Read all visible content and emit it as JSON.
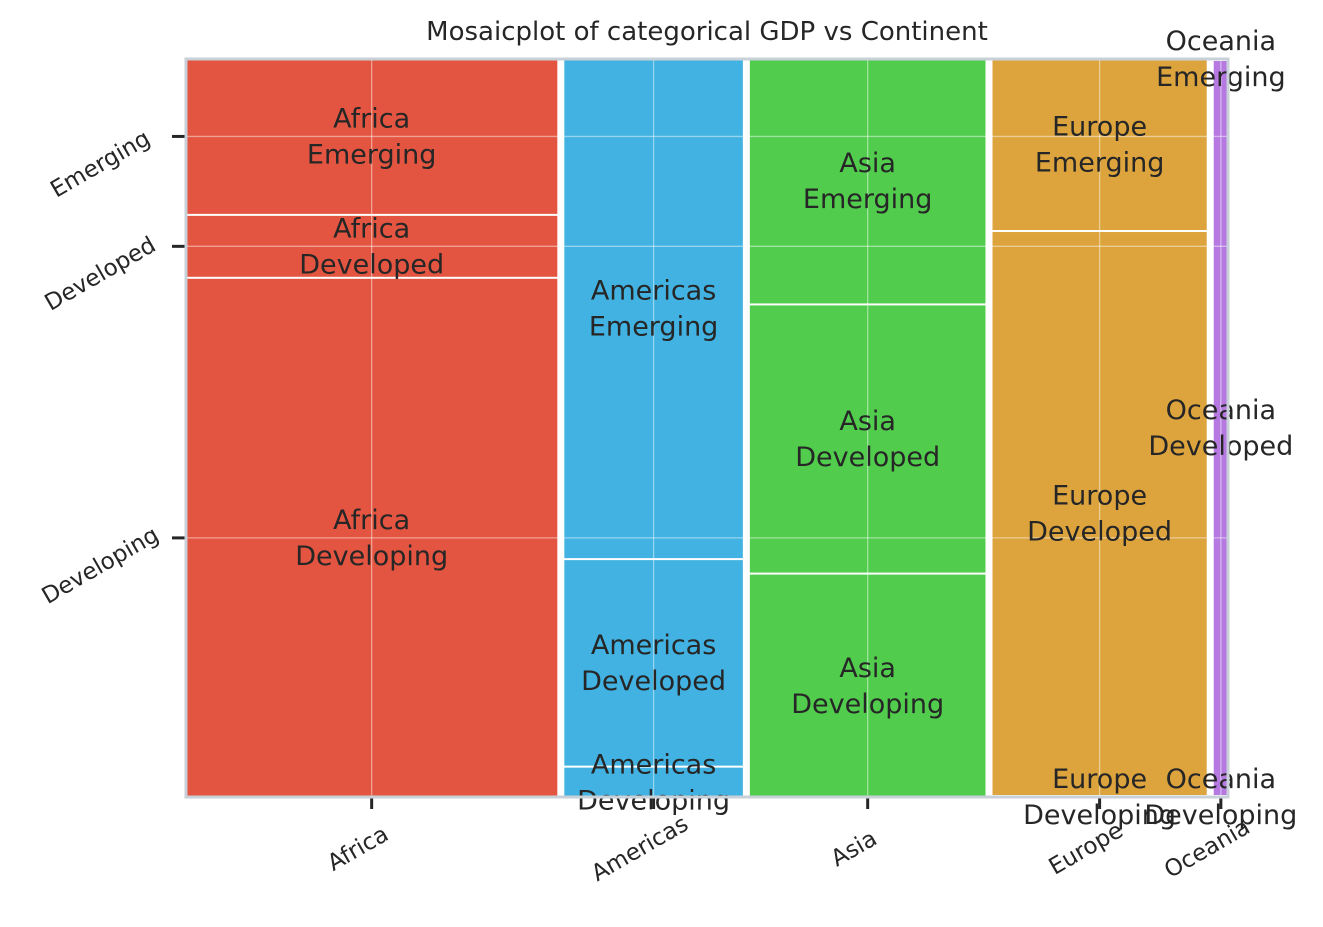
{
  "chart_data": {
    "type": "mosaic",
    "title": "Mosaicplot of categorical GDP vs Continent",
    "xlabel": "",
    "ylabel": "",
    "grid": true,
    "categories": [
      "Africa",
      "Americas",
      "Asia",
      "Europe",
      "Oceania"
    ],
    "category_counts": [
      52,
      25,
      33,
      30,
      2
    ],
    "gdp_levels": [
      "Developing",
      "Developed",
      "Emerging"
    ],
    "y_tick_labels": [
      "Emerging",
      "Developed",
      "Developing"
    ],
    "colors": {
      "Africa": "#e35540",
      "Americas": "#41b2e2",
      "Asia": "#51cc4d",
      "Europe": "#dda43d",
      "Oceania": "#b679e2"
    },
    "series": [
      {
        "name": "Developing",
        "values": [
          0.706,
          0.04,
          0.303,
          0.0,
          0.0
        ]
      },
      {
        "name": "Developed",
        "values": [
          0.083,
          0.28,
          0.364,
          0.767,
          1.0
        ]
      },
      {
        "name": "Emerging",
        "values": [
          0.211,
          0.68,
          0.333,
          0.233,
          0.0
        ]
      }
    ],
    "tile_labels": {
      "Africa": [
        "Africa\nDeveloping",
        "Africa\nDeveloped",
        "Africa\nEmerging"
      ],
      "Americas": [
        "Americas\nDeveloping",
        "Americas\nDeveloped",
        "Americas\nEmerging"
      ],
      "Asia": [
        "Asia\nDeveloping",
        "Asia\nDeveloped",
        "Asia\nEmerging"
      ],
      "Europe": [
        "Europe\nDeveloping",
        "Europe\nDeveloped",
        "Europe\nEmerging"
      ],
      "Oceania": [
        "Oceania\nDeveloping",
        "Oceania\nDeveloped",
        "Oceania\nEmerging"
      ]
    }
  }
}
